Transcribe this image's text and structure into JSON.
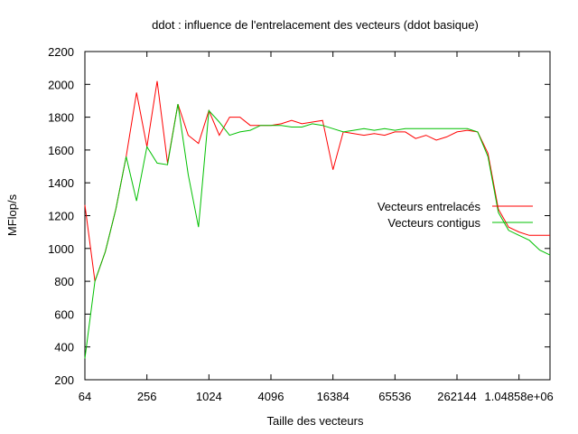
{
  "chart_data": {
    "type": "line",
    "title": "ddot : influence de l'entrelacement des vecteurs (ddot basique)",
    "xlabel": "Taille des vecteurs",
    "ylabel": "MFlop/s",
    "x_scale": "log2",
    "xlim": [
      64,
      2097152
    ],
    "ylim": [
      200,
      2200
    ],
    "x_ticks": [
      {
        "value": 64,
        "label": "64"
      },
      {
        "value": 256,
        "label": "256"
      },
      {
        "value": 1024,
        "label": "1024"
      },
      {
        "value": 4096,
        "label": "4096"
      },
      {
        "value": 16384,
        "label": "16384"
      },
      {
        "value": 65536,
        "label": "65536"
      },
      {
        "value": 262144,
        "label": "262144"
      },
      {
        "value": 1048576,
        "label": "1.04858e+06"
      }
    ],
    "y_ticks": [
      {
        "value": 200,
        "label": "200"
      },
      {
        "value": 400,
        "label": "400"
      },
      {
        "value": 600,
        "label": "600"
      },
      {
        "value": 800,
        "label": "800"
      },
      {
        "value": 1000,
        "label": "1000"
      },
      {
        "value": 1200,
        "label": "1200"
      },
      {
        "value": 1400,
        "label": "1400"
      },
      {
        "value": 1600,
        "label": "1600"
      },
      {
        "value": 1800,
        "label": "1800"
      },
      {
        "value": 2000,
        "label": "2000"
      },
      {
        "value": 2200,
        "label": "2200"
      }
    ],
    "grid": false,
    "legend_position": "right",
    "series": [
      {
        "name": "Vecteurs entrelacés",
        "color": "#ff0000",
        "x": [
          64,
          80,
          101,
          128,
          161,
          203,
          256,
          322,
          406,
          512,
          645,
          812,
          1024,
          1290,
          1625,
          2048,
          2580,
          3251,
          4096,
          5161,
          6502,
          8192,
          10321,
          13004,
          16384,
          20643,
          26008,
          32768,
          41285,
          52016,
          65536,
          82570,
          104032,
          131072,
          165140,
          208064,
          262144,
          330280,
          416128,
          524288,
          660561,
          832255,
          1048576,
          1321122,
          1664510,
          2097152
        ],
        "y": [
          1265,
          800,
          980,
          1240,
          1560,
          1950,
          1620,
          2020,
          1520,
          1880,
          1690,
          1640,
          1840,
          1690,
          1800,
          1800,
          1750,
          1750,
          1750,
          1760,
          1780,
          1760,
          1770,
          1780,
          1480,
          1710,
          1700,
          1690,
          1700,
          1690,
          1710,
          1710,
          1670,
          1690,
          1660,
          1680,
          1710,
          1720,
          1710,
          1580,
          1240,
          1130,
          1100,
          1080,
          1080,
          1080
        ]
      },
      {
        "name": "Vecteurs contigus",
        "color": "#00c000",
        "x": [
          64,
          80,
          101,
          128,
          161,
          203,
          256,
          322,
          406,
          512,
          645,
          812,
          1024,
          1290,
          1625,
          2048,
          2580,
          3251,
          4096,
          5161,
          6502,
          8192,
          10321,
          13004,
          16384,
          20643,
          26008,
          32768,
          41285,
          52016,
          65536,
          82570,
          104032,
          131072,
          165140,
          208064,
          262144,
          330280,
          416128,
          524288,
          660561,
          832255,
          1048576,
          1321122,
          1664510,
          2097152
        ],
        "y": [
          330,
          800,
          980,
          1240,
          1560,
          1290,
          1620,
          1520,
          1510,
          1880,
          1450,
          1130,
          1840,
          1770,
          1690,
          1710,
          1720,
          1750,
          1750,
          1750,
          1740,
          1740,
          1760,
          1750,
          1730,
          1710,
          1720,
          1730,
          1720,
          1730,
          1720,
          1730,
          1730,
          1730,
          1730,
          1730,
          1730,
          1730,
          1710,
          1560,
          1220,
          1110,
          1080,
          1050,
          990,
          960
        ]
      }
    ]
  }
}
